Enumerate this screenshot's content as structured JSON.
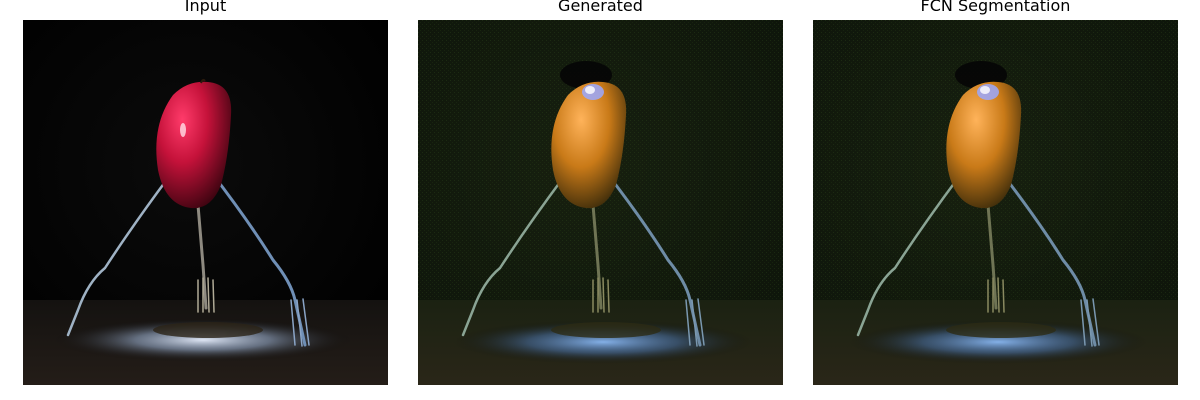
{
  "panels": [
    {
      "title": "Input",
      "variant": "input"
    },
    {
      "title": "Generated",
      "variant": "generated"
    },
    {
      "title": "FCN Segmentation",
      "variant": "generated"
    }
  ]
}
